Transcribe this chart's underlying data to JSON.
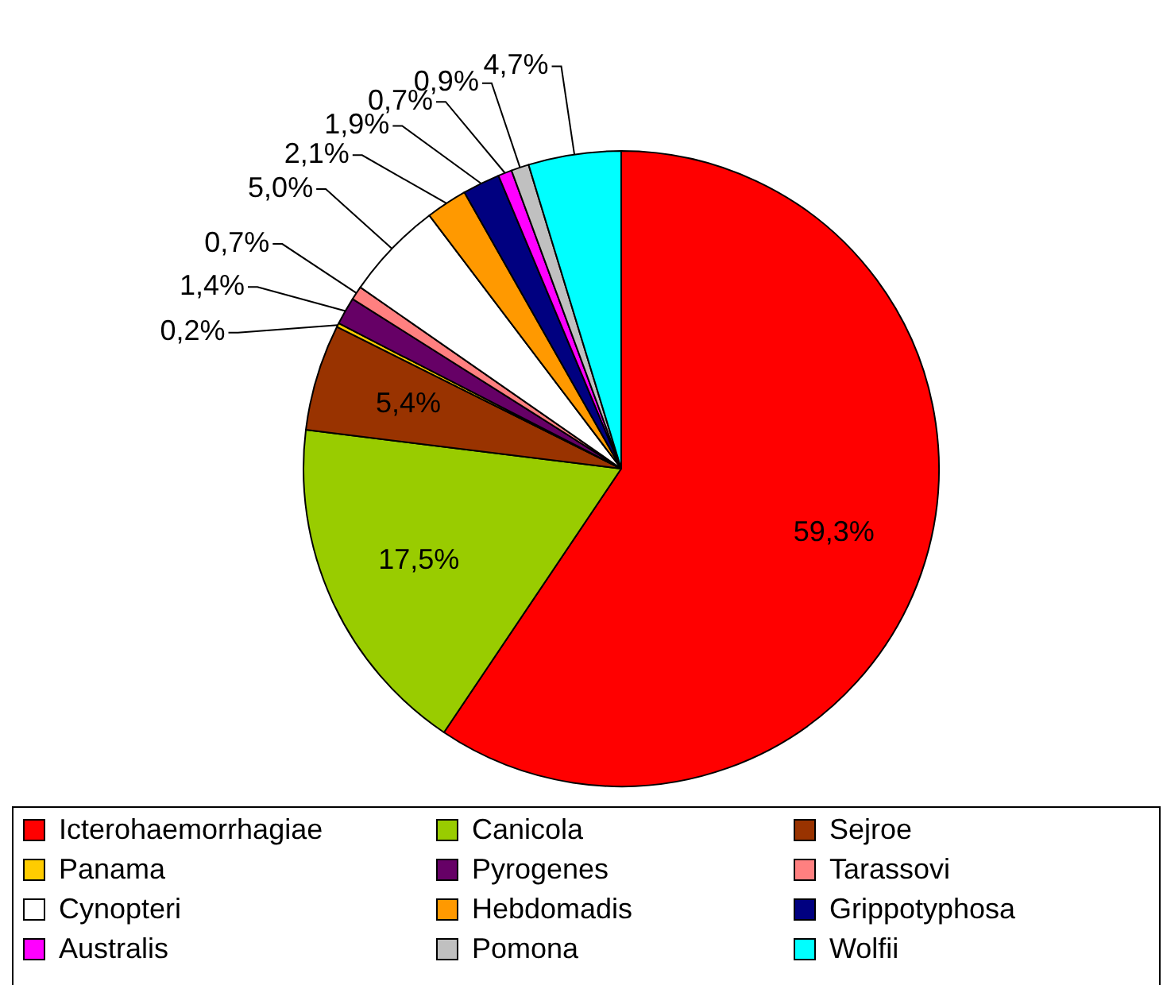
{
  "chart_data": {
    "type": "pie",
    "categories": [
      "Icterohaemorrhagiae",
      "Canicola",
      "Sejroe",
      "Panama",
      "Pyrogenes",
      "Tarassovi",
      "Cynopteri",
      "Hebdomadis",
      "Grippotyphosa",
      "Australis",
      "Pomona",
      "Wolfii"
    ],
    "values": [
      59.3,
      17.5,
      5.4,
      0.2,
      1.4,
      0.7,
      5.0,
      2.1,
      1.9,
      0.7,
      0.9,
      4.7
    ],
    "colors": [
      "#ff0000",
      "#99cc00",
      "#993300",
      "#ffcc00",
      "#660066",
      "#ff8080",
      "#ffffff",
      "#ff9900",
      "#000080",
      "#ff00ff",
      "#c0c0c0",
      "#00ffff"
    ],
    "value_labels": [
      "59,3%",
      "17,5%",
      "5,4%",
      "0,2%",
      "1,4%",
      "0,7%",
      "5,0%",
      "2,1%",
      "1,9%",
      "0,7%",
      "0,9%",
      "4,7%"
    ],
    "legend": "bottom"
  }
}
